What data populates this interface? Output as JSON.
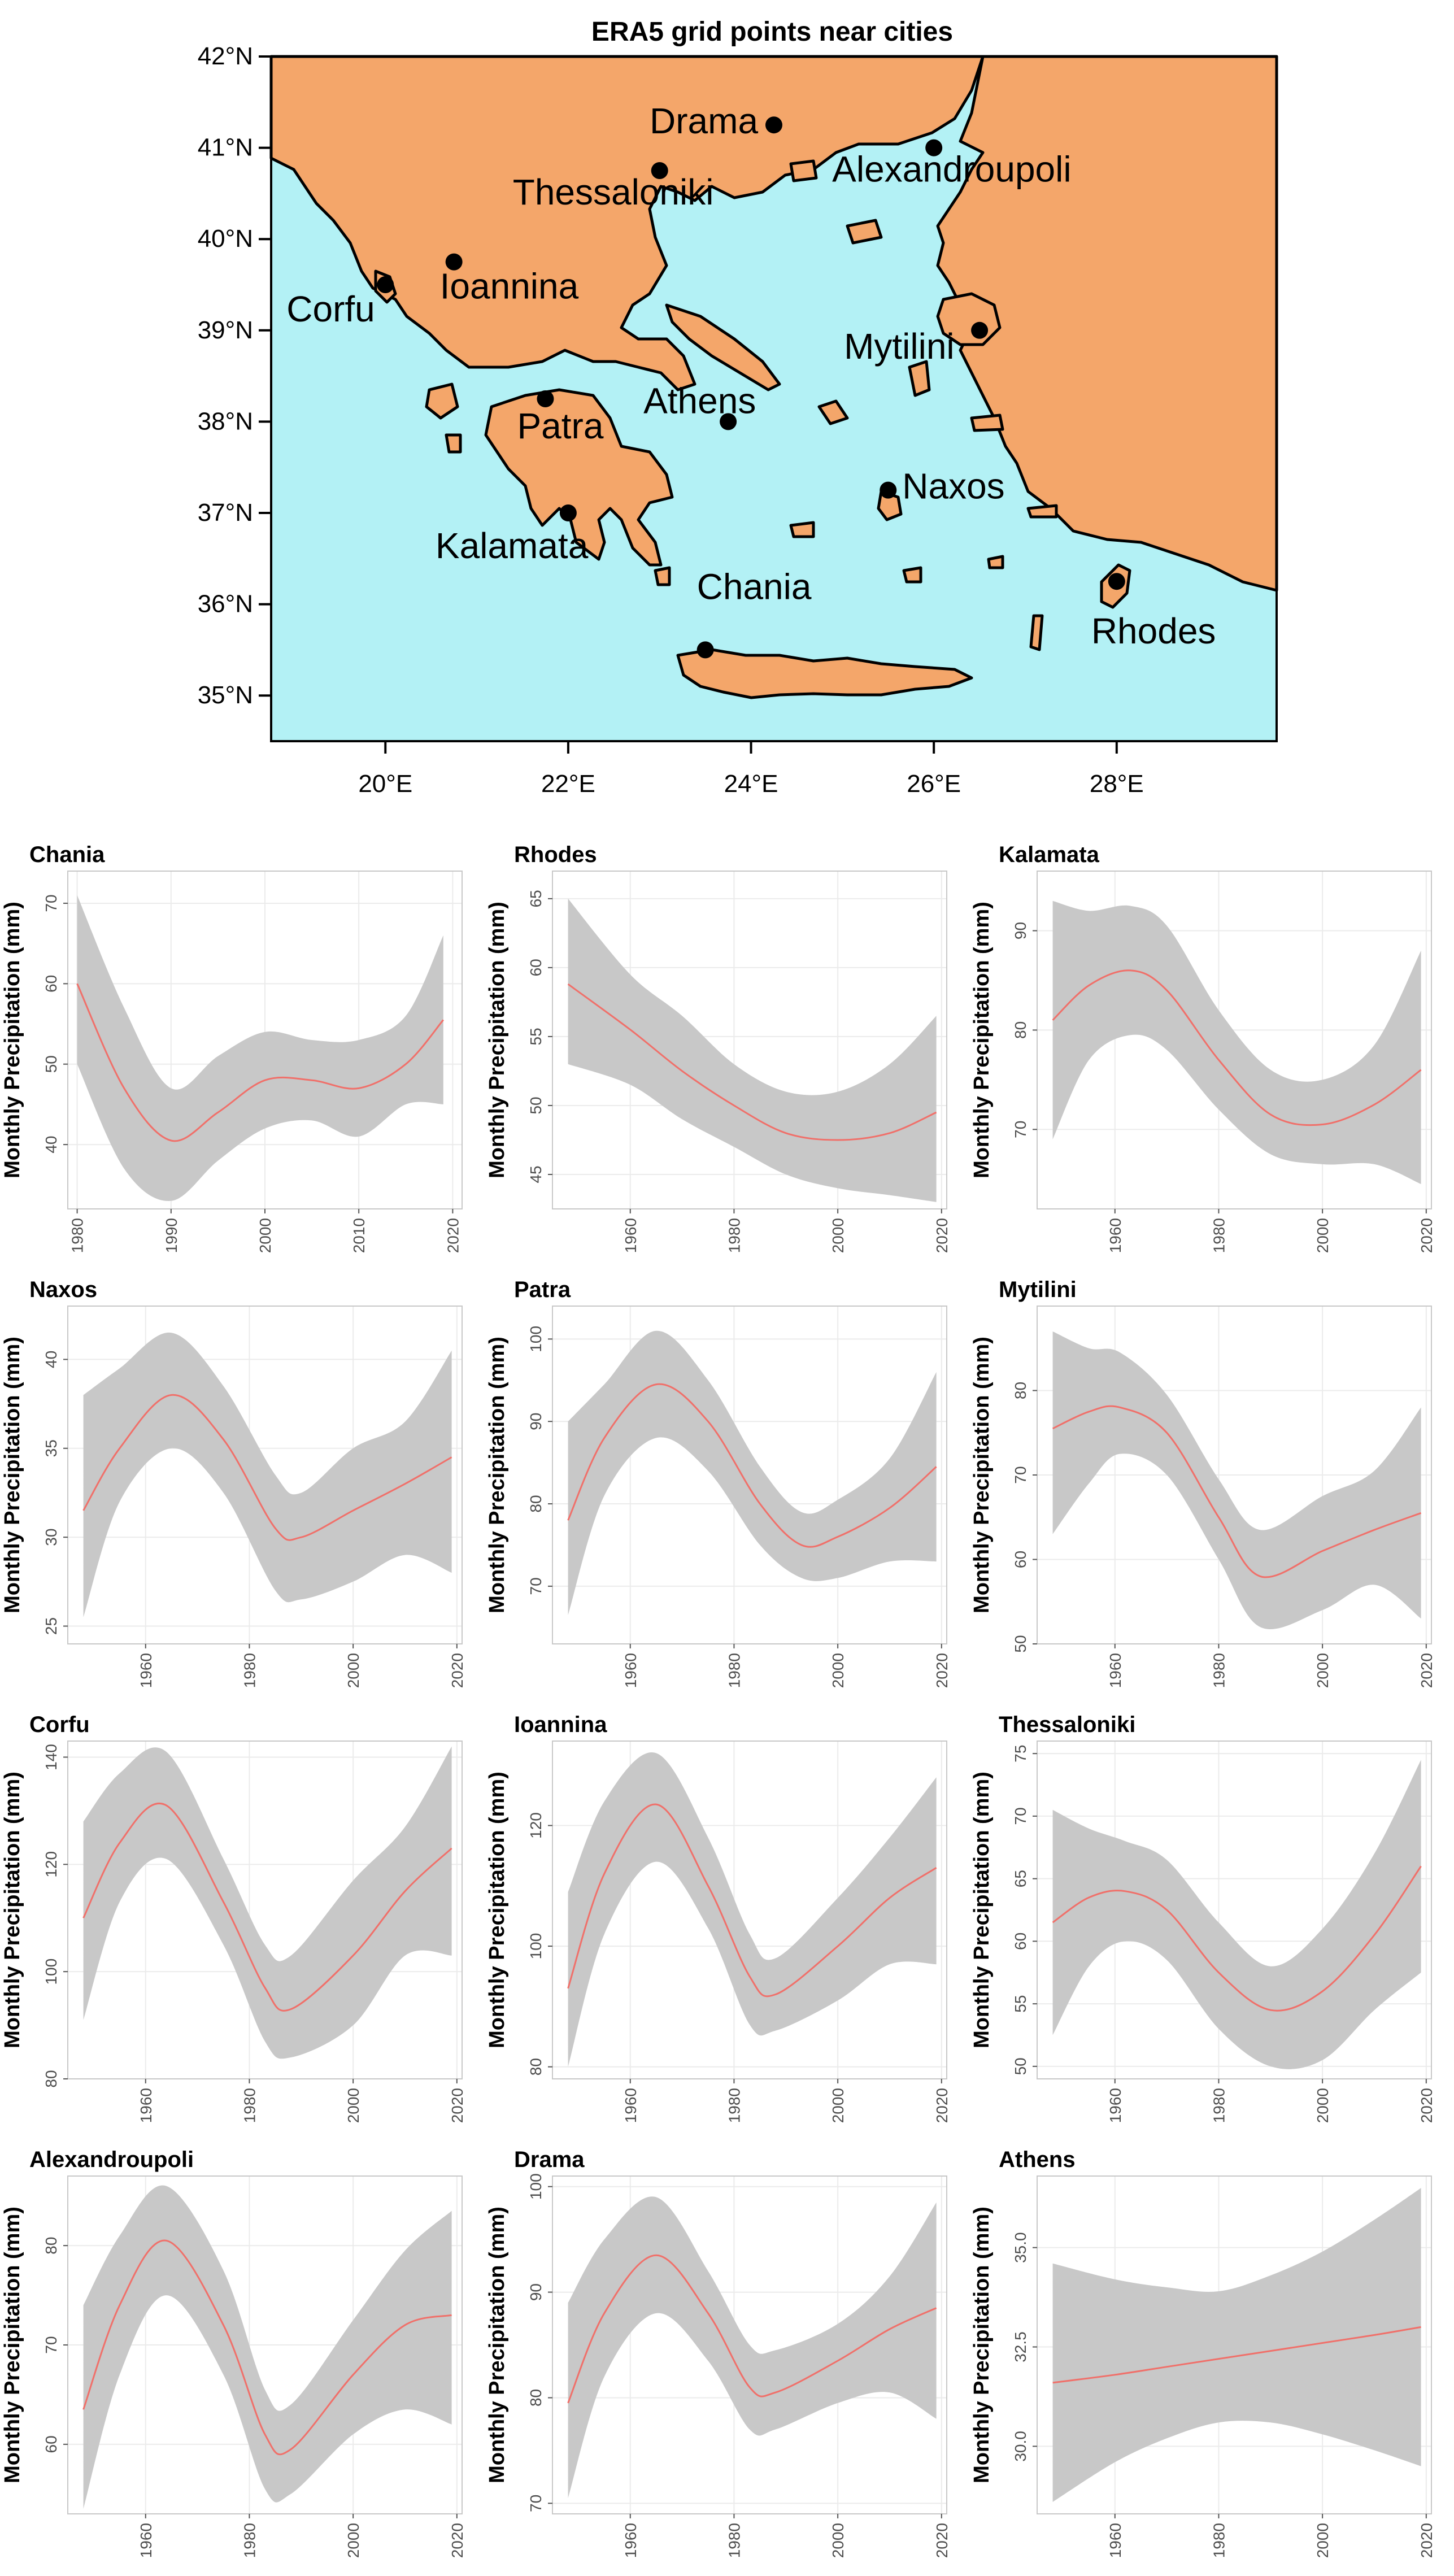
{
  "map": {
    "title": "ERA5 grid points near cities",
    "lat_ticks": [
      "35°N",
      "36°N",
      "37°N",
      "38°N",
      "39°N",
      "40°N",
      "41°N",
      "42°N"
    ],
    "lon_ticks": [
      "20°E",
      "22°E",
      "24°E",
      "26°E",
      "28°E"
    ],
    "cities": [
      {
        "name": "Drama",
        "lon": 24.25,
        "lat": 41.25
      },
      {
        "name": "Alexandroupoli",
        "lon": 26.0,
        "lat": 41.0
      },
      {
        "name": "Thessaloniki",
        "lon": 23.0,
        "lat": 40.75
      },
      {
        "name": "Ioannina",
        "lon": 20.75,
        "lat": 39.75
      },
      {
        "name": "Corfu",
        "lon": 20.0,
        "lat": 39.5
      },
      {
        "name": "Mytilini",
        "lon": 26.5,
        "lat": 39.0
      },
      {
        "name": "Patra",
        "lon": 21.75,
        "lat": 38.25
      },
      {
        "name": "Athens",
        "lon": 23.75,
        "lat": 38.0
      },
      {
        "name": "Naxos",
        "lon": 25.5,
        "lat": 37.25
      },
      {
        "name": "Kalamata",
        "lon": 22.0,
        "lat": 37.0
      },
      {
        "name": "Chania",
        "lon": 23.5,
        "lat": 35.5
      },
      {
        "name": "Rhodes",
        "lon": 28.0,
        "lat": 36.25
      }
    ],
    "colors": {
      "sea": "#b3f1f5",
      "land": "#f4a66a",
      "border": "#000000"
    }
  },
  "chart_data": [
    {
      "type": "line",
      "title": "Chania",
      "ylabel": "Monthly Precipitation (mm)",
      "xlim": [
        1979,
        2021
      ],
      "ylim": [
        32,
        74
      ],
      "xticks": [
        1980,
        1990,
        2000,
        2010,
        2020
      ],
      "yticks": [
        40,
        50,
        60,
        70
      ],
      "x": [
        1980,
        1985,
        1990,
        1995,
        2000,
        2005,
        2010,
        2015,
        2019
      ],
      "fit": [
        60,
        47,
        40.5,
        44,
        48,
        48,
        47,
        50,
        55.5
      ],
      "lower": [
        50,
        37,
        33,
        38,
        42,
        43,
        41,
        45,
        45
      ],
      "upper": [
        71,
        57,
        47,
        51,
        54,
        53,
        53,
        56,
        66
      ]
    },
    {
      "type": "line",
      "title": "Rhodes",
      "ylabel": "Monthly Precipitation (mm)",
      "xlim": [
        1945,
        2021
      ],
      "ylim": [
        42.5,
        67
      ],
      "xticks": [
        1960,
        1980,
        2000,
        2020
      ],
      "yticks": [
        45,
        50,
        55,
        60,
        65
      ],
      "x": [
        1948,
        1960,
        1970,
        1980,
        1990,
        2000,
        2010,
        2019
      ],
      "fit": [
        58.8,
        55.5,
        52.5,
        50,
        48,
        47.5,
        48,
        49.5
      ],
      "lower": [
        53,
        51.5,
        49,
        47,
        45,
        44,
        43.5,
        43
      ],
      "upper": [
        65,
        59.5,
        56.5,
        53,
        51,
        51,
        53,
        56.5
      ]
    },
    {
      "type": "line",
      "title": "Kalamata",
      "ylabel": "Monthly Precipitation (mm)",
      "xlim": [
        1945,
        2021
      ],
      "ylim": [
        62,
        96
      ],
      "xticks": [
        1960,
        1980,
        2000,
        2020
      ],
      "yticks": [
        70,
        80,
        90
      ],
      "x": [
        1948,
        1955,
        1963,
        1970,
        1980,
        1990,
        2000,
        2010,
        2019
      ],
      "fit": [
        81,
        84.5,
        86,
        84,
        77,
        71.5,
        70.5,
        72.5,
        76
      ],
      "lower": [
        69,
        77,
        79.5,
        78,
        72,
        67.5,
        66.5,
        66.5,
        64.5
      ],
      "upper": [
        93,
        92,
        92.5,
        90.5,
        82,
        76,
        75,
        78.5,
        88
      ]
    },
    {
      "type": "line",
      "title": "Naxos",
      "ylabel": "Monthly Precipitation (mm)",
      "xlim": [
        1945,
        2021
      ],
      "ylim": [
        24,
        43
      ],
      "xticks": [
        1960,
        1980,
        2000,
        2020
      ],
      "yticks": [
        25,
        30,
        35,
        40
      ],
      "x": [
        1948,
        1955,
        1965,
        1975,
        1985,
        1990,
        2000,
        2010,
        2019
      ],
      "fit": [
        31.5,
        35,
        38,
        35.5,
        30.5,
        30,
        31.5,
        33,
        34.5
      ],
      "lower": [
        25.5,
        32,
        35,
        32.5,
        27,
        26.5,
        27.5,
        29,
        28
      ],
      "upper": [
        38,
        39.5,
        41.5,
        38.5,
        33.5,
        32.5,
        35,
        36.5,
        40.5
      ]
    },
    {
      "type": "line",
      "title": "Patra",
      "ylabel": "Monthly Precipitation (mm)",
      "xlim": [
        1945,
        2021
      ],
      "ylim": [
        63,
        104
      ],
      "xticks": [
        1960,
        1980,
        2000,
        2020
      ],
      "yticks": [
        70,
        80,
        90,
        100
      ],
      "x": [
        1948,
        1955,
        1965,
        1975,
        1985,
        1993,
        2000,
        2010,
        2019
      ],
      "fit": [
        78,
        88,
        94.5,
        90,
        80,
        75,
        76,
        79.5,
        84.5
      ],
      "lower": [
        66.5,
        81,
        88,
        84,
        75,
        71,
        71,
        73,
        73
      ],
      "upper": [
        90,
        94.5,
        101,
        95,
        84.5,
        79,
        80.5,
        85.5,
        96
      ]
    },
    {
      "type": "line",
      "title": "Mytilini",
      "ylabel": "Monthly Precipitation (mm)",
      "xlim": [
        1945,
        2021
      ],
      "ylim": [
        50,
        90
      ],
      "xticks": [
        1960,
        1980,
        2000,
        2020
      ],
      "yticks": [
        50,
        60,
        70,
        80
      ],
      "x": [
        1948,
        1955,
        1961,
        1970,
        1980,
        1988,
        2000,
        2010,
        2019
      ],
      "fit": [
        75.5,
        77.5,
        78,
        75,
        65,
        58,
        61,
        63.5,
        65.5
      ],
      "lower": [
        63,
        69,
        72.5,
        70,
        60,
        52,
        54,
        57,
        53
      ],
      "upper": [
        87,
        85,
        84.5,
        79.5,
        69.5,
        63.5,
        67.5,
        70.5,
        78
      ]
    },
    {
      "type": "line",
      "title": "Corfu",
      "ylabel": "Monthly Precipitation (mm)",
      "xlim": [
        1945,
        2021
      ],
      "ylim": [
        80,
        143
      ],
      "xticks": [
        1960,
        1980,
        2000,
        2020
      ],
      "yticks": [
        80,
        100,
        120,
        140
      ],
      "x": [
        1948,
        1955,
        1964,
        1975,
        1983,
        1988,
        2000,
        2010,
        2019
      ],
      "fit": [
        110,
        124,
        131,
        113,
        97,
        93,
        103,
        115,
        123
      ],
      "lower": [
        91,
        113,
        121,
        105,
        87,
        84,
        90,
        103,
        103
      ],
      "upper": [
        128,
        137,
        141,
        121,
        105,
        103,
        117,
        127,
        142
      ]
    },
    {
      "type": "line",
      "title": "Ioannina",
      "ylabel": "Monthly Precipitation (mm)",
      "xlim": [
        1945,
        2021
      ],
      "ylim": [
        78,
        134
      ],
      "xticks": [
        1960,
        1980,
        2000,
        2020
      ],
      "yticks": [
        80,
        100,
        120
      ],
      "x": [
        1948,
        1955,
        1965,
        1975,
        1983,
        1988,
        2000,
        2010,
        2019
      ],
      "fit": [
        93,
        112,
        123.5,
        110,
        95,
        92,
        100,
        108,
        113
      ],
      "lower": [
        80,
        102,
        114,
        103,
        87,
        86,
        91,
        97,
        97
      ],
      "upper": [
        109,
        124,
        132,
        118,
        102,
        98,
        108,
        118,
        128
      ]
    },
    {
      "type": "line",
      "title": "Thessaloniki",
      "ylabel": "Monthly Precipitation (mm)",
      "xlim": [
        1945,
        2021
      ],
      "ylim": [
        49,
        76
      ],
      "xticks": [
        1960,
        1980,
        2000,
        2020
      ],
      "yticks": [
        50,
        55,
        60,
        65,
        70,
        75
      ],
      "x": [
        1948,
        1955,
        1962,
        1970,
        1980,
        1990,
        2000,
        2010,
        2019
      ],
      "fit": [
        61.5,
        63.5,
        64,
        62.5,
        57.5,
        54.5,
        56,
        60.5,
        66
      ],
      "lower": [
        52.5,
        58,
        60,
        58.5,
        53,
        50,
        50.5,
        54.5,
        57.5
      ],
      "upper": [
        70.5,
        69,
        68,
        66.5,
        61.5,
        58,
        61,
        67,
        74.5
      ]
    },
    {
      "type": "line",
      "title": "Alexandroupoli",
      "ylabel": "Monthly Precipitation (mm)",
      "xlim": [
        1945,
        2021
      ],
      "ylim": [
        53,
        87
      ],
      "xticks": [
        1960,
        1980,
        2000,
        2020
      ],
      "yticks": [
        60,
        70,
        80
      ],
      "x": [
        1948,
        1955,
        1964,
        1975,
        1983,
        1988,
        2000,
        2010,
        2019
      ],
      "fit": [
        63.5,
        74,
        80.5,
        72,
        61,
        59.5,
        67,
        72,
        73
      ],
      "lower": [
        53.5,
        67,
        75,
        67,
        55.5,
        55,
        61,
        63.5,
        62
      ],
      "upper": [
        74,
        81,
        86,
        77.5,
        65.5,
        64,
        72.5,
        79.5,
        83.5
      ]
    },
    {
      "type": "line",
      "title": "Drama",
      "ylabel": "Monthly Precipitation (mm)",
      "xlim": [
        1945,
        2021
      ],
      "ylim": [
        69,
        101
      ],
      "xticks": [
        1960,
        1980,
        2000,
        2020
      ],
      "yticks": [
        70,
        80,
        90,
        100
      ],
      "x": [
        1948,
        1955,
        1965,
        1975,
        1983,
        1988,
        2000,
        2010,
        2019
      ],
      "fit": [
        79.5,
        88,
        93.5,
        88,
        81,
        80.5,
        83.5,
        86.5,
        88.5
      ],
      "lower": [
        70.5,
        82,
        88,
        83.5,
        77,
        77,
        79.5,
        80.5,
        78
      ],
      "upper": [
        89,
        95,
        99,
        92,
        85,
        84.5,
        87,
        91.5,
        98.5
      ]
    },
    {
      "type": "line",
      "title": "Athens",
      "ylabel": "Monthly Precipitation (mm)",
      "xlim": [
        1945,
        2021
      ],
      "ylim": [
        28.3,
        36.8
      ],
      "xticks": [
        1960,
        1980,
        2000,
        2020
      ],
      "yticks": [
        30.0,
        32.5,
        35.0
      ],
      "x": [
        1948,
        1960,
        1970,
        1980,
        1990,
        2000,
        2010,
        2019
      ],
      "fit": [
        31.6,
        31.8,
        32.0,
        32.2,
        32.4,
        32.6,
        32.8,
        33.0
      ],
      "lower": [
        28.6,
        29.6,
        30.2,
        30.6,
        30.6,
        30.3,
        29.9,
        29.5
      ],
      "upper": [
        34.6,
        34.2,
        34.0,
        33.9,
        34.3,
        34.9,
        35.7,
        36.5
      ]
    }
  ]
}
